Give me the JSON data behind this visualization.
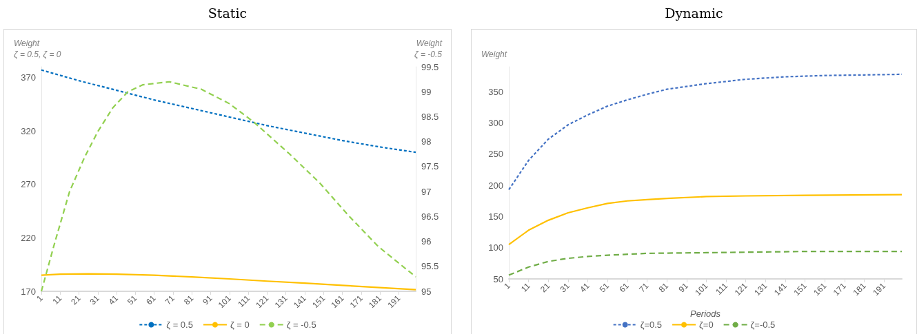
{
  "chart_data": [
    {
      "type": "line",
      "title": "Static",
      "ylabel": "Weight\nζ = 0.5, ζ = 0",
      "y2label": "Weight\nζ = -0.5",
      "xlim": [
        1,
        200
      ],
      "xticks": [
        1,
        11,
        21,
        31,
        41,
        51,
        61,
        71,
        81,
        91,
        101,
        111,
        121,
        131,
        141,
        151,
        161,
        171,
        181,
        191
      ],
      "ylim": [
        170,
        380
      ],
      "yticks": [
        170,
        220,
        270,
        320,
        370
      ],
      "y2lim": [
        95,
        99.5
      ],
      "y2ticks": [
        95,
        95.5,
        96,
        96.5,
        97,
        97.5,
        98,
        98.5,
        99,
        99.5
      ],
      "legend": "bottom",
      "marker": "none",
      "series": [
        {
          "name": "ζ = 0.5",
          "color": "#0070c0",
          "line_style": "dashed",
          "x": [
            1,
            21,
            41,
            61,
            81,
            101,
            121,
            141,
            161,
            181,
            200
          ],
          "values": [
            377,
            367,
            358,
            349,
            341,
            333,
            325,
            318,
            311,
            305,
            300
          ]
        },
        {
          "name": "ζ = 0",
          "color": "#ffc000",
          "line_style": "solid",
          "x": [
            1,
            11,
            26,
            41,
            61,
            81,
            101,
            121,
            141,
            161,
            181,
            200
          ],
          "values": [
            185,
            186,
            186.3,
            186,
            185,
            183.5,
            181.6,
            179.5,
            177.6,
            175.5,
            173.5,
            171.5
          ]
        },
        {
          "name": "ζ = -0.5",
          "color": "#92d050",
          "line_style": "dashed",
          "axis": "y2",
          "x": [
            1,
            8,
            16,
            24,
            31,
            39,
            47,
            55,
            69,
            86,
            101,
            114,
            133,
            149,
            164,
            180,
            200
          ],
          "values": [
            95.0,
            95.96,
            97.0,
            97.69,
            98.2,
            98.68,
            99.0,
            99.14,
            99.2,
            99.05,
            98.76,
            98.39,
            97.75,
            97.17,
            96.53,
            95.9,
            95.29
          ]
        }
      ]
    },
    {
      "type": "line",
      "title": "Dynamic",
      "ylabel": "Weight",
      "xlabel": "Periods",
      "xlim": [
        1,
        200
      ],
      "xticks": [
        1,
        11,
        21,
        31,
        41,
        51,
        61,
        71,
        81,
        91,
        101,
        111,
        121,
        131,
        141,
        151,
        161,
        171,
        181,
        191
      ],
      "ylim": [
        50,
        390
      ],
      "yticks": [
        50,
        100,
        150,
        200,
        250,
        300,
        350
      ],
      "legend": "bottom",
      "marker": "none",
      "series": [
        {
          "name": "ζ=0.5",
          "color": "#4472c4",
          "line_style": "dashed",
          "x": [
            1,
            11,
            21,
            31,
            41,
            51,
            61,
            71,
            81,
            101,
            121,
            141,
            161,
            181,
            200
          ],
          "values": [
            193,
            240,
            274,
            297,
            313,
            327,
            337,
            346,
            354,
            363,
            370,
            374,
            376,
            377,
            378
          ]
        },
        {
          "name": "ζ=0",
          "color": "#ffc000",
          "line_style": "solid",
          "x": [
            1,
            11,
            21,
            31,
            41,
            51,
            61,
            71,
            81,
            101,
            121,
            151,
            200
          ],
          "values": [
            105,
            128,
            144,
            156,
            164,
            171,
            175,
            177,
            179,
            182,
            183,
            184,
            185
          ]
        },
        {
          "name": "ζ=-0.5",
          "color": "#70ad47",
          "line_style": "dashed",
          "x": [
            1,
            11,
            21,
            31,
            41,
            51,
            71,
            101,
            151,
            200
          ],
          "values": [
            56,
            69,
            78,
            83,
            86,
            88,
            91,
            92,
            94,
            94
          ]
        }
      ]
    }
  ]
}
